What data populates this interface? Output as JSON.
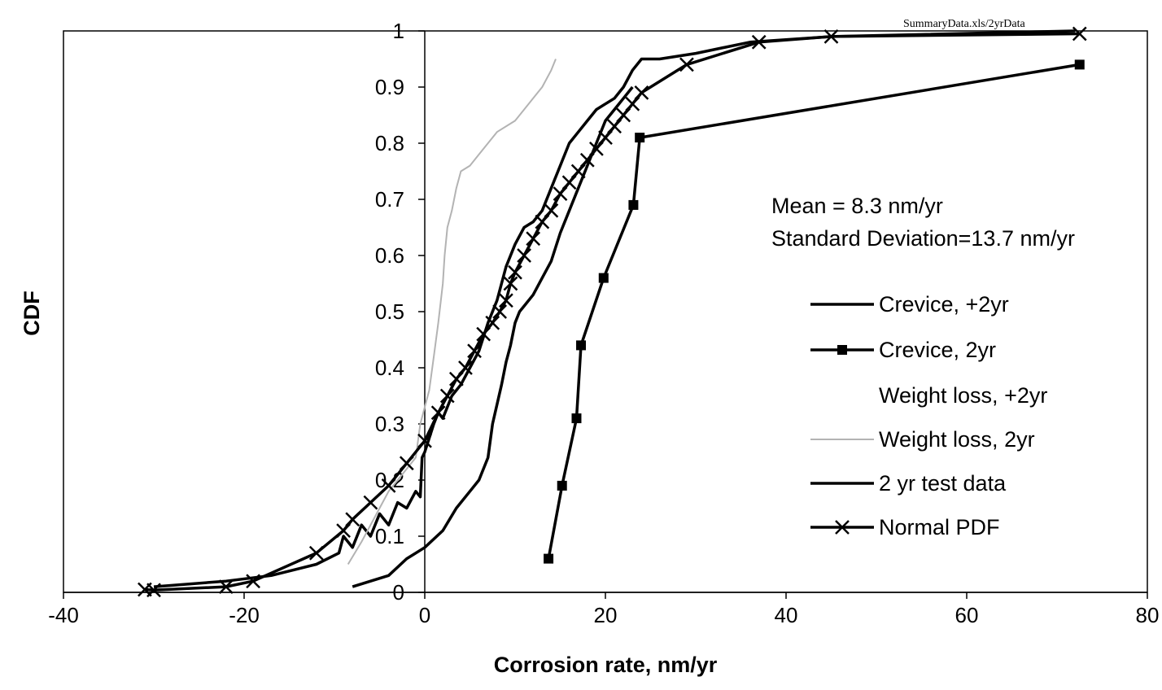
{
  "chart_data": {
    "type": "line",
    "source_label": "SummaryData.xls/2yrData",
    "xlabel": "Corrosion rate, nm/yr",
    "ylabel": "CDF",
    "xlim": [
      -40,
      80
    ],
    "ylim": [
      0,
      1
    ],
    "x_ticks": [
      "-40",
      "-20",
      "0",
      "20",
      "40",
      "60",
      "80"
    ],
    "y_ticks": [
      "0",
      "0.1",
      "0.2",
      "0.3",
      "0.4",
      "0.5",
      "0.6",
      "0.7",
      "0.8",
      "0.9",
      "1"
    ],
    "grid": false,
    "legend_position": "right",
    "annotations": [
      "Mean = 8.3 nm/yr",
      "Standard Deviation=13.7 nm/yr"
    ],
    "series": [
      {
        "name": "Crevice, +2yr",
        "color": "#000000",
        "marker": "none",
        "x": [
          -30,
          -22,
          -17,
          -12,
          -9.5,
          -9,
          -8,
          -7,
          -6,
          -5,
          -4,
          -3,
          -2,
          -1,
          -0.5,
          -0.3,
          0,
          1,
          1.5,
          2,
          3,
          4,
          5,
          6,
          7,
          8,
          9,
          10,
          11,
          12,
          13,
          14,
          15,
          16,
          17,
          18,
          19,
          20,
          21,
          22,
          23,
          24,
          26,
          30,
          36,
          45,
          72
        ],
        "y": [
          0.01,
          0.02,
          0.03,
          0.05,
          0.07,
          0.1,
          0.08,
          0.12,
          0.1,
          0.14,
          0.12,
          0.16,
          0.15,
          0.18,
          0.17,
          0.24,
          0.25,
          0.3,
          0.32,
          0.31,
          0.35,
          0.37,
          0.4,
          0.43,
          0.48,
          0.52,
          0.58,
          0.62,
          0.65,
          0.66,
          0.68,
          0.72,
          0.76,
          0.8,
          0.82,
          0.84,
          0.86,
          0.87,
          0.88,
          0.9,
          0.93,
          0.95,
          0.95,
          0.96,
          0.98,
          0.99,
          1.0
        ]
      },
      {
        "name": "Crevice, 2yr",
        "color": "#000000",
        "marker": "square",
        "x": [
          13.7,
          15.2,
          16.8,
          17.3,
          19.8,
          23.1,
          23.8,
          72.5
        ],
        "y": [
          0.06,
          0.19,
          0.31,
          0.44,
          0.56,
          0.69,
          0.81,
          0.94
        ]
      },
      {
        "name": "Weight loss, +2yr",
        "color": "#ffffff",
        "marker": "none",
        "x": [],
        "y": []
      },
      {
        "name": "Weight loss, 2yr",
        "color": "#b3b3b3",
        "marker": "none",
        "x": [
          -8.5,
          -7,
          -6,
          -5,
          -4,
          -3,
          -2,
          -1,
          -0.5,
          0,
          0.5,
          1,
          1.5,
          2,
          2.2,
          2.5,
          3,
          3.5,
          4,
          5,
          6,
          8,
          10,
          12,
          13,
          14,
          14.5
        ],
        "y": [
          0.05,
          0.09,
          0.12,
          0.15,
          0.18,
          0.2,
          0.22,
          0.24,
          0.3,
          0.33,
          0.36,
          0.42,
          0.48,
          0.55,
          0.6,
          0.65,
          0.68,
          0.72,
          0.75,
          0.76,
          0.78,
          0.82,
          0.84,
          0.88,
          0.9,
          0.93,
          0.95
        ]
      },
      {
        "name": "2 yr test data",
        "color": "#000000",
        "marker": "none",
        "x": [
          -8,
          -4,
          -2,
          0,
          2,
          3.5,
          5,
          6,
          7,
          7.5,
          8.5,
          9,
          9.5,
          10,
          10.5,
          11,
          12,
          13,
          14,
          15,
          16,
          17,
          18,
          19,
          20,
          21,
          22,
          23
        ],
        "y": [
          0.01,
          0.03,
          0.06,
          0.08,
          0.11,
          0.15,
          0.18,
          0.2,
          0.24,
          0.3,
          0.37,
          0.41,
          0.44,
          0.48,
          0.5,
          0.51,
          0.53,
          0.56,
          0.59,
          0.64,
          0.68,
          0.72,
          0.76,
          0.8,
          0.84,
          0.86,
          0.88,
          0.9
        ]
      },
      {
        "name": "Normal PDF",
        "color": "#000000",
        "marker": "x",
        "x": [
          -31,
          -30,
          -22,
          -19,
          -12,
          -9,
          -8,
          -6,
          -4,
          -2,
          0,
          1.5,
          2.5,
          3.5,
          4.5,
          5.5,
          6.5,
          7.5,
          8.3,
          9,
          9.5,
          10,
          11,
          12,
          13,
          14,
          15,
          16,
          17,
          18,
          19,
          20,
          21,
          22,
          23,
          24,
          29,
          37,
          45,
          72.5
        ],
        "y": [
          0.005,
          0.004,
          0.01,
          0.02,
          0.07,
          0.11,
          0.13,
          0.16,
          0.19,
          0.23,
          0.27,
          0.32,
          0.35,
          0.38,
          0.4,
          0.43,
          0.46,
          0.48,
          0.5,
          0.52,
          0.55,
          0.57,
          0.6,
          0.63,
          0.66,
          0.68,
          0.71,
          0.73,
          0.75,
          0.77,
          0.79,
          0.81,
          0.83,
          0.85,
          0.87,
          0.89,
          0.94,
          0.98,
          0.99,
          0.995
        ]
      }
    ]
  }
}
